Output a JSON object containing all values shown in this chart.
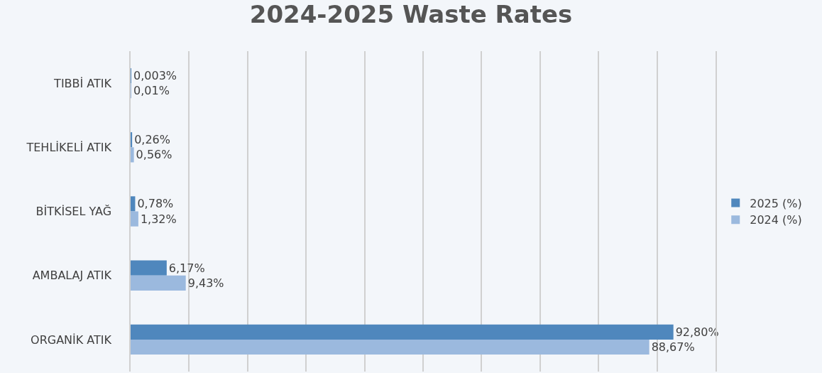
{
  "chart_data": {
    "type": "bar",
    "orientation": "horizontal",
    "title": "2024-2025 Waste Rates",
    "categories": [
      "TIBBİ ATIK",
      "TEHLİKELİ ATIK",
      "BİTKİSEL YAĞ",
      "AMBALAJ ATIK",
      "ORGANİK ATIK"
    ],
    "series": [
      {
        "name": "2025 (%)",
        "color": "#4f87bd",
        "values": [
          0.003,
          0.26,
          0.78,
          6.17,
          92.8
        ],
        "value_labels": [
          "0,003%",
          "0,26%",
          "0,78%",
          "6,17%",
          "92,80%"
        ]
      },
      {
        "name": "2024 (%)",
        "color": "#9bb9de",
        "values": [
          0.01,
          0.56,
          1.32,
          9.43,
          88.67
        ],
        "value_labels": [
          "0,01%",
          "0,56%",
          "1,32%",
          "9,43%",
          "88,67%"
        ]
      }
    ],
    "xlim": [
      0,
      100
    ],
    "xticks": [
      {
        "value": 0,
        "label": null
      },
      {
        "value": 10,
        "label": null
      },
      {
        "value": 20,
        "label": null
      },
      {
        "value": 30,
        "label": null
      },
      {
        "value": 40,
        "label": null
      },
      {
        "value": 50,
        "label": null
      },
      {
        "value": 60,
        "label": null
      },
      {
        "value": 70,
        "label": null
      },
      {
        "value": 80,
        "label": null
      },
      {
        "value": 90,
        "label": null
      },
      {
        "value": 100,
        "label": null
      }
    ],
    "grid": "x",
    "legend": "right",
    "tick_labels": "y"
  }
}
